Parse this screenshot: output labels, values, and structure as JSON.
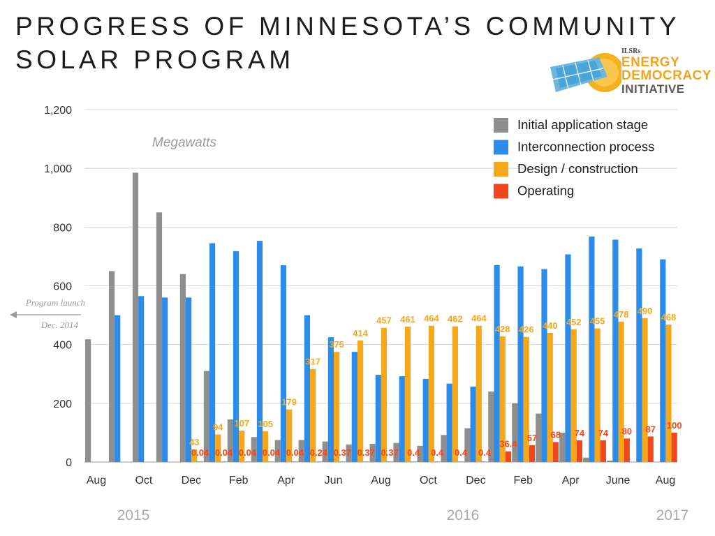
{
  "page": {
    "title_line1": "PROGRESS OF MINNESOTA’S COMMUNITY",
    "title_line2": "SOLAR PROGRAM"
  },
  "logo": {
    "small": "ILSRs",
    "line1": "ENERGY",
    "line2": "DEMOCRACY",
    "line3": "INITIATIVE"
  },
  "chart_data": {
    "type": "bar",
    "ylabel": "Megawatts",
    "ylim": [
      0,
      1200
    ],
    "yticks": [
      0,
      200,
      400,
      600,
      800,
      1000,
      1200
    ],
    "ytick_labels": [
      "0",
      "200",
      "400",
      "600",
      "800",
      "1,000",
      "1,200"
    ],
    "grid": true,
    "legend_position": "top-right",
    "x_tick_labels": [
      "Aug",
      "Oct",
      "Dec",
      "Feb",
      "Apr",
      "Jun",
      "Aug",
      "Oct",
      "Dec",
      "Feb",
      "Apr",
      "June",
      "Aug"
    ],
    "year_labels": [
      "2015",
      "2016",
      "2017"
    ],
    "annotation": {
      "line1": "Program launch",
      "line2": "Dec. 2014"
    },
    "colors": {
      "Initial application stage": "#8f8f8f",
      "Interconnection process": "#2b8cea",
      "Design / construction": "#f6a81c",
      "Operating": "#f1471d"
    },
    "series": [
      {
        "name": "Initial application stage",
        "values": [
          418,
          650,
          985,
          850,
          640,
          310,
          145,
          85,
          75,
          75,
          70,
          60,
          62,
          65,
          55,
          92,
          115,
          240,
          200,
          165,
          100,
          15,
          5,
          0,
          0
        ]
      },
      {
        "name": "Interconnection process",
        "values": [
          0,
          500,
          565,
          560,
          560,
          745,
          718,
          753,
          670,
          500,
          425,
          375,
          297,
          292,
          283,
          267,
          257,
          670,
          666,
          657,
          707,
          768,
          757,
          727,
          690
        ]
      },
      {
        "name": "Design / construction",
        "values": [
          0,
          0,
          0,
          0,
          43,
          94,
          107,
          105,
          179,
          317,
          375,
          414,
          457,
          461,
          464,
          462,
          464,
          428,
          426,
          440,
          452,
          455,
          478,
          490,
          468
        ]
      },
      {
        "name": "Operating",
        "values": [
          0,
          0,
          0,
          0,
          0.04,
          0.04,
          0.04,
          0.04,
          0.04,
          0.24,
          0.37,
          0.37,
          0.37,
          0.4,
          0.4,
          0.4,
          0.4,
          36.4,
          57,
          68,
          74,
          74,
          80,
          87,
          100
        ]
      }
    ],
    "data_labels": {
      "Design / construction": [
        "",
        "",
        "",
        "",
        "43",
        "94",
        "107",
        "105",
        "179",
        "317",
        "375",
        "414",
        "457",
        "461",
        "464",
        "462",
        "464",
        "428",
        "426",
        "440",
        "452",
        "455",
        "478",
        "490",
        "468"
      ],
      "Operating": [
        "",
        "",
        "",
        "",
        "0.04",
        "0.04",
        "0.04",
        "0.04",
        "0.04",
        "0.24",
        "0.37",
        "0.37",
        "0.37",
        "0.4",
        "0.4",
        "0.4",
        "0.4",
        "36.4",
        "57",
        "68",
        "74",
        "74",
        "80",
        "87",
        "100"
      ]
    }
  }
}
